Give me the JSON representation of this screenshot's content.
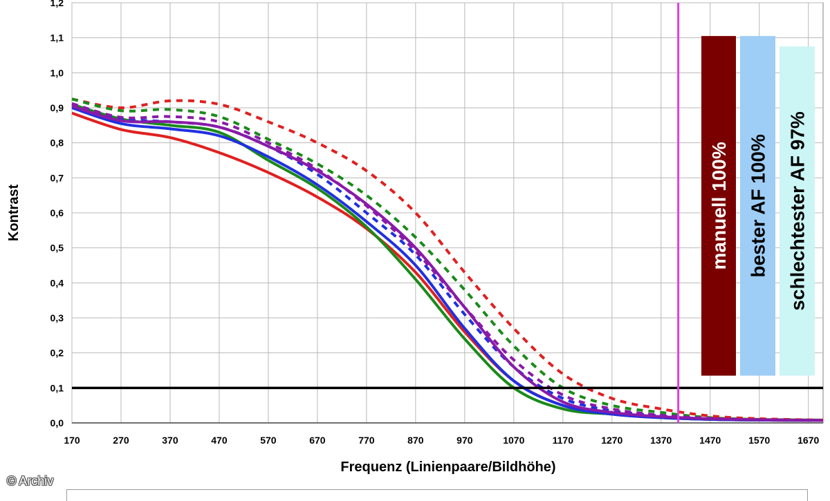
{
  "credit": "© Archiv",
  "chart_data": {
    "type": "line",
    "xlabel": "Frequenz (Linienpaare/Bildhöhe)",
    "ylabel": "Kontrast",
    "xlim": [
      170,
      1700
    ],
    "ylim": [
      0.0,
      1.2
    ],
    "x_ticks": [
      "170",
      "270",
      "370",
      "470",
      "570",
      "670",
      "770",
      "870",
      "970",
      "1070",
      "1170",
      "1270",
      "1370",
      "1470",
      "1570",
      "1670"
    ],
    "y_ticks": [
      "0,0",
      "0,1",
      "0,2",
      "0,3",
      "0,4",
      "0,5",
      "0,6",
      "0,7",
      "0,8",
      "0,9",
      "1,0",
      "1,1",
      "1,2"
    ],
    "grid": true,
    "threshold": {
      "y": 0.1,
      "color": "#000000"
    },
    "marker_line": {
      "x": 1405,
      "color": "#e040e0"
    },
    "series": [
      {
        "color": "#e02020",
        "style": "solid",
        "points": [
          [
            170,
            0.885
          ],
          [
            270,
            0.838
          ],
          [
            370,
            0.815
          ],
          [
            470,
            0.772
          ],
          [
            570,
            0.715
          ],
          [
            670,
            0.645
          ],
          [
            770,
            0.555
          ],
          [
            870,
            0.43
          ],
          [
            970,
            0.26
          ],
          [
            1070,
            0.12
          ],
          [
            1170,
            0.05
          ],
          [
            1270,
            0.025
          ],
          [
            1370,
            0.015
          ],
          [
            1470,
            0.01
          ],
          [
            1570,
            0.008
          ],
          [
            1700,
            0.007
          ]
        ]
      },
      {
        "color": "#e02020",
        "style": "dashed",
        "points": [
          [
            170,
            0.925
          ],
          [
            270,
            0.9
          ],
          [
            370,
            0.92
          ],
          [
            470,
            0.91
          ],
          [
            570,
            0.86
          ],
          [
            670,
            0.8
          ],
          [
            770,
            0.72
          ],
          [
            870,
            0.6
          ],
          [
            970,
            0.43
          ],
          [
            1070,
            0.27
          ],
          [
            1170,
            0.14
          ],
          [
            1270,
            0.07
          ],
          [
            1370,
            0.04
          ],
          [
            1470,
            0.02
          ],
          [
            1570,
            0.012
          ],
          [
            1700,
            0.008
          ]
        ]
      },
      {
        "color": "#1a8a1a",
        "style": "solid",
        "points": [
          [
            170,
            0.91
          ],
          [
            270,
            0.868
          ],
          [
            370,
            0.85
          ],
          [
            470,
            0.83
          ],
          [
            570,
            0.75
          ],
          [
            670,
            0.67
          ],
          [
            770,
            0.56
          ],
          [
            870,
            0.41
          ],
          [
            970,
            0.24
          ],
          [
            1070,
            0.1
          ],
          [
            1170,
            0.04
          ],
          [
            1270,
            0.025
          ],
          [
            1370,
            0.015
          ],
          [
            1470,
            0.01
          ],
          [
            1570,
            0.008
          ],
          [
            1700,
            0.007
          ]
        ]
      },
      {
        "color": "#1a8a1a",
        "style": "dashed",
        "points": [
          [
            170,
            0.925
          ],
          [
            270,
            0.892
          ],
          [
            370,
            0.895
          ],
          [
            470,
            0.875
          ],
          [
            570,
            0.81
          ],
          [
            670,
            0.74
          ],
          [
            770,
            0.65
          ],
          [
            870,
            0.53
          ],
          [
            970,
            0.38
          ],
          [
            1070,
            0.22
          ],
          [
            1170,
            0.1
          ],
          [
            1270,
            0.05
          ],
          [
            1370,
            0.03
          ],
          [
            1470,
            0.015
          ],
          [
            1570,
            0.01
          ],
          [
            1700,
            0.008
          ]
        ]
      },
      {
        "color": "#2030e0",
        "style": "solid",
        "points": [
          [
            170,
            0.9
          ],
          [
            270,
            0.855
          ],
          [
            370,
            0.84
          ],
          [
            470,
            0.82
          ],
          [
            570,
            0.76
          ],
          [
            670,
            0.68
          ],
          [
            770,
            0.575
          ],
          [
            870,
            0.45
          ],
          [
            970,
            0.27
          ],
          [
            1070,
            0.12
          ],
          [
            1170,
            0.05
          ],
          [
            1270,
            0.025
          ],
          [
            1370,
            0.015
          ],
          [
            1470,
            0.01
          ],
          [
            1570,
            0.008
          ],
          [
            1700,
            0.007
          ]
        ]
      },
      {
        "color": "#2030e0",
        "style": "dashed",
        "points": [
          [
            170,
            0.905
          ],
          [
            270,
            0.87
          ],
          [
            370,
            0.86
          ],
          [
            470,
            0.845
          ],
          [
            570,
            0.79
          ],
          [
            670,
            0.71
          ],
          [
            770,
            0.6
          ],
          [
            870,
            0.48
          ],
          [
            970,
            0.31
          ],
          [
            1070,
            0.16
          ],
          [
            1170,
            0.07
          ],
          [
            1270,
            0.035
          ],
          [
            1370,
            0.02
          ],
          [
            1470,
            0.012
          ],
          [
            1570,
            0.009
          ],
          [
            1700,
            0.007
          ]
        ]
      },
      {
        "color": "#8a1aa8",
        "style": "solid",
        "points": [
          [
            170,
            0.905
          ],
          [
            270,
            0.863
          ],
          [
            370,
            0.86
          ],
          [
            470,
            0.845
          ],
          [
            570,
            0.79
          ],
          [
            670,
            0.72
          ],
          [
            770,
            0.625
          ],
          [
            870,
            0.5
          ],
          [
            970,
            0.33
          ],
          [
            1070,
            0.16
          ],
          [
            1170,
            0.06
          ],
          [
            1270,
            0.03
          ],
          [
            1370,
            0.018
          ],
          [
            1470,
            0.012
          ],
          [
            1570,
            0.009
          ],
          [
            1700,
            0.007
          ]
        ]
      },
      {
        "color": "#8a1aa8",
        "style": "dashed",
        "points": [
          [
            170,
            0.912
          ],
          [
            270,
            0.873
          ],
          [
            370,
            0.875
          ],
          [
            470,
            0.86
          ],
          [
            570,
            0.8
          ],
          [
            670,
            0.725
          ],
          [
            770,
            0.62
          ],
          [
            870,
            0.49
          ],
          [
            970,
            0.33
          ],
          [
            1070,
            0.18
          ],
          [
            1170,
            0.08
          ],
          [
            1270,
            0.04
          ],
          [
            1370,
            0.022
          ],
          [
            1470,
            0.013
          ],
          [
            1570,
            0.009
          ],
          [
            1700,
            0.007
          ]
        ]
      }
    ],
    "annotations": [
      {
        "text": "manuell 100%",
        "color": "#7a0000",
        "text_color": "#ffffff",
        "value": 1.105
      },
      {
        "text": "bester AF 100%",
        "color": "#9ecdf5",
        "text_color": "#000000",
        "value": 1.105
      },
      {
        "text": "schlechtester AF 97%",
        "color": "#ccf5f5",
        "text_color": "#000000",
        "value": 1.075
      }
    ]
  }
}
